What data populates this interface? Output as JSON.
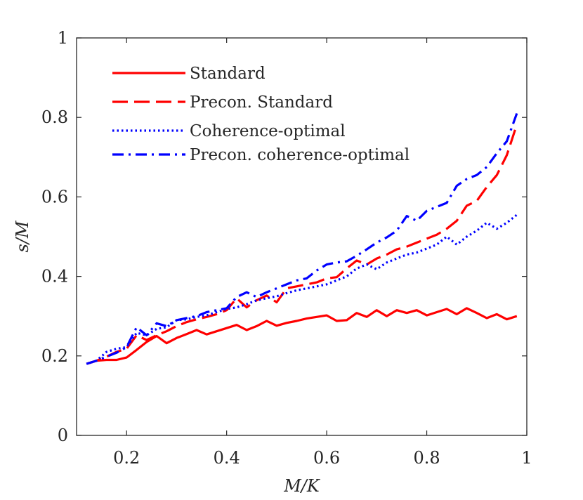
{
  "chart_data": {
    "type": "line",
    "title": "",
    "xlabel": "M/K",
    "ylabel": "s/M",
    "xlim": [
      0.1,
      1.0
    ],
    "ylim": [
      0,
      1
    ],
    "xticks": [
      0.2,
      0.4,
      0.6,
      0.8,
      1.0
    ],
    "xtick_labels": [
      "0.2",
      "0.4",
      "0.6",
      "0.8",
      "1"
    ],
    "yticks": [
      0,
      0.2,
      0.4,
      0.6,
      0.8,
      1.0
    ],
    "ytick_labels": [
      "0",
      "0.2",
      "0.4",
      "0.6",
      "0.8",
      "1"
    ],
    "legend_position": "top-left",
    "x": [
      0.12,
      0.14,
      0.16,
      0.18,
      0.2,
      0.22,
      0.24,
      0.26,
      0.28,
      0.3,
      0.32,
      0.34,
      0.36,
      0.38,
      0.4,
      0.42,
      0.44,
      0.46,
      0.48,
      0.5,
      0.52,
      0.54,
      0.56,
      0.58,
      0.6,
      0.62,
      0.64,
      0.66,
      0.68,
      0.7,
      0.72,
      0.74,
      0.76,
      0.78,
      0.8,
      0.82,
      0.84,
      0.86,
      0.88,
      0.9,
      0.92,
      0.94,
      0.96,
      0.98
    ],
    "series": [
      {
        "name": "Standard",
        "color": "#ff0000",
        "dash": "solid",
        "values": [
          0.18,
          0.188,
          0.19,
          0.19,
          0.196,
          0.215,
          0.235,
          0.25,
          0.232,
          0.245,
          0.255,
          0.265,
          0.254,
          0.262,
          0.27,
          0.278,
          0.265,
          0.275,
          0.288,
          0.276,
          0.283,
          0.288,
          0.294,
          0.298,
          0.302,
          0.288,
          0.29,
          0.308,
          0.298,
          0.315,
          0.3,
          0.315,
          0.308,
          0.315,
          0.302,
          0.31,
          0.318,
          0.305,
          0.32,
          0.308,
          0.295,
          0.305,
          0.292,
          0.3
        ]
      },
      {
        "name": "Precon. Standard",
        "color": "#ff0000",
        "dash": "dashed",
        "values": [
          0.18,
          0.188,
          0.198,
          0.21,
          0.218,
          0.252,
          0.24,
          0.252,
          0.262,
          0.275,
          0.285,
          0.292,
          0.298,
          0.305,
          0.315,
          0.345,
          0.322,
          0.34,
          0.352,
          0.335,
          0.37,
          0.375,
          0.38,
          0.385,
          0.395,
          0.398,
          0.42,
          0.44,
          0.43,
          0.445,
          0.455,
          0.468,
          0.475,
          0.485,
          0.495,
          0.505,
          0.52,
          0.54,
          0.578,
          0.59,
          0.625,
          0.655,
          0.705,
          0.782
        ]
      },
      {
        "name": "Coherence-optimal",
        "color": "#0000ff",
        "dash": "dotted",
        "values": [
          0.18,
          0.188,
          0.21,
          0.218,
          0.222,
          0.258,
          0.252,
          0.268,
          0.272,
          0.29,
          0.292,
          0.298,
          0.302,
          0.31,
          0.318,
          0.322,
          0.33,
          0.34,
          0.345,
          0.35,
          0.358,
          0.365,
          0.37,
          0.375,
          0.38,
          0.39,
          0.4,
          0.42,
          0.43,
          0.418,
          0.435,
          0.445,
          0.455,
          0.46,
          0.47,
          0.48,
          0.5,
          0.48,
          0.5,
          0.515,
          0.535,
          0.52,
          0.535,
          0.555
        ]
      },
      {
        "name": "Precon. coherence-optimal",
        "color": "#0000ff",
        "dash": "dashdot",
        "values": [
          0.18,
          0.188,
          0.198,
          0.208,
          0.222,
          0.272,
          0.252,
          0.282,
          0.275,
          0.29,
          0.295,
          0.3,
          0.31,
          0.315,
          0.32,
          0.348,
          0.36,
          0.348,
          0.36,
          0.37,
          0.38,
          0.39,
          0.395,
          0.415,
          0.43,
          0.435,
          0.438,
          0.452,
          0.468,
          0.485,
          0.498,
          0.515,
          0.552,
          0.54,
          0.565,
          0.575,
          0.585,
          0.628,
          0.645,
          0.655,
          0.675,
          0.71,
          0.74,
          0.81
        ]
      }
    ]
  }
}
